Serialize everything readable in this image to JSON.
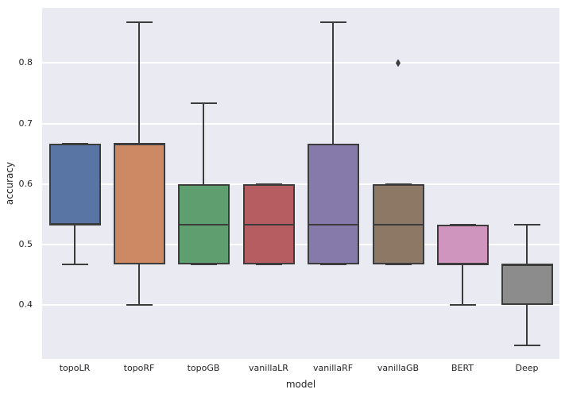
{
  "chart_data": {
    "type": "boxplot",
    "title": "",
    "xlabel": "model",
    "ylabel": "accuracy",
    "categories": [
      "topoLR",
      "topoRF",
      "topoGB",
      "vanillaLR",
      "vanillaRF",
      "vanillaGB",
      "BERT",
      "Deep"
    ],
    "ylim": [
      0.311,
      0.891
    ],
    "yticks": [
      0.4,
      0.5,
      0.6,
      0.7,
      0.8
    ],
    "grid": "horizontal",
    "legend": "none",
    "boxes": [
      {
        "label": "topoLR",
        "color": "#5875A3",
        "whisker_low": 0.467,
        "q1": 0.533,
        "median": 0.533,
        "q3": 0.667,
        "whisker_high": 0.667,
        "outliers": []
      },
      {
        "label": "topoRF",
        "color": "#CC8963",
        "whisker_low": 0.4,
        "q1": 0.467,
        "median": 0.667,
        "q3": 0.667,
        "whisker_high": 0.867,
        "outliers": []
      },
      {
        "label": "topoGB",
        "color": "#5F9E6E",
        "whisker_low": 0.467,
        "q1": 0.467,
        "median": 0.533,
        "q3": 0.6,
        "whisker_high": 0.733,
        "outliers": []
      },
      {
        "label": "vanillaLR",
        "color": "#B55D60",
        "whisker_low": 0.467,
        "q1": 0.467,
        "median": 0.533,
        "q3": 0.6,
        "whisker_high": 0.6,
        "outliers": []
      },
      {
        "label": "vanillaRF",
        "color": "#857AAA",
        "whisker_low": 0.467,
        "q1": 0.467,
        "median": 0.533,
        "q3": 0.667,
        "whisker_high": 0.867,
        "outliers": []
      },
      {
        "label": "vanillaGB",
        "color": "#8D7866",
        "whisker_low": 0.467,
        "q1": 0.467,
        "median": 0.533,
        "q3": 0.6,
        "whisker_high": 0.6,
        "outliers": [
          0.8
        ]
      },
      {
        "label": "BERT",
        "color": "#D095BF",
        "whisker_low": 0.4,
        "q1": 0.467,
        "median": 0.467,
        "q3": 0.533,
        "whisker_high": 0.533,
        "outliers": []
      },
      {
        "label": "Deep",
        "color": "#8C8C8C",
        "whisker_low": 0.333,
        "q1": 0.4,
        "median": 0.467,
        "q3": 0.467,
        "whisker_high": 0.533,
        "outliers": []
      }
    ],
    "style": {
      "figure_bg": "#FFFFFF",
      "axes_bg": "#EAEAF2",
      "grid_color": "#FFFFFF",
      "line_color": "#3C3C3C",
      "tick_color": "#262626"
    }
  }
}
